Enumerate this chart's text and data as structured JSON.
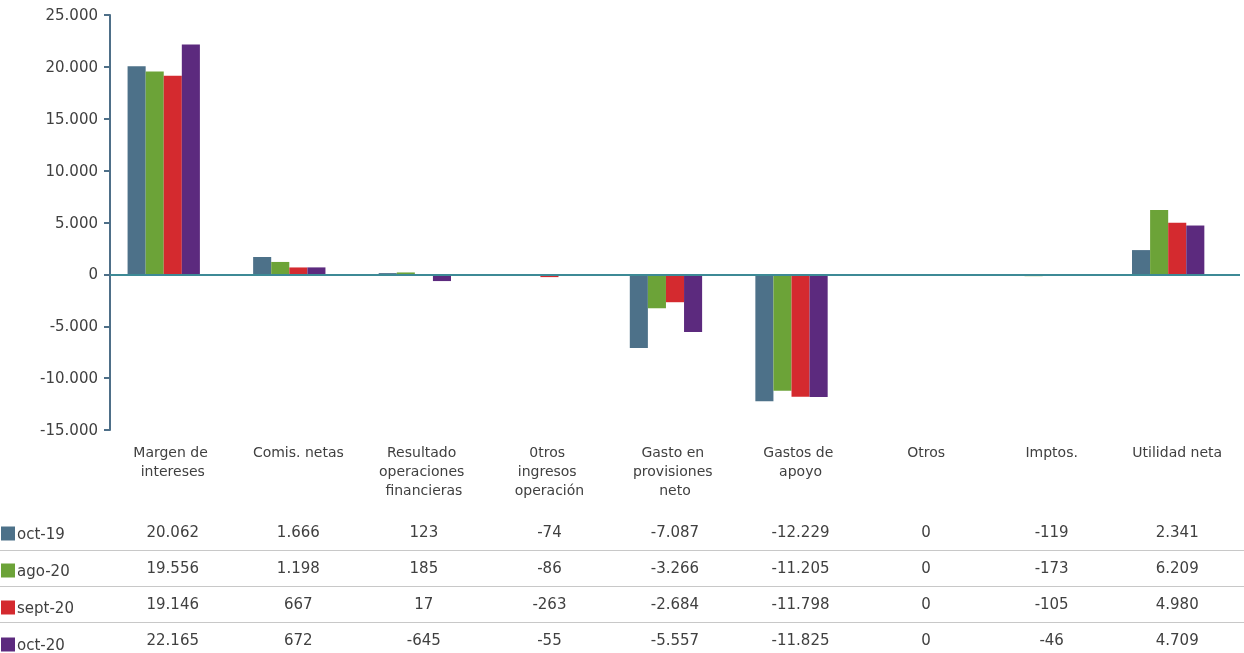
{
  "chart_data": {
    "type": "bar",
    "categories": [
      "Margen de intereses",
      "Comis. netas",
      "Resultado operaciones financieras",
      "0tros ingresos operación",
      "Gasto en provisiones neto",
      "Gastos de apoyo",
      "Otros",
      "Imptos.",
      "Utilidad neta"
    ],
    "series": [
      {
        "name": "oct-19",
        "color": "#4d7189",
        "values": [
          20062,
          1666,
          123,
          -74,
          -7087,
          -12229,
          0,
          -119,
          2341
        ],
        "value_labels": [
          "20.062",
          "1.666",
          "123",
          "-74",
          "-7.087",
          "-12.229",
          "0",
          "-119",
          "2.341"
        ]
      },
      {
        "name": "ago-20",
        "color": "#6ca338",
        "values": [
          19556,
          1198,
          185,
          -86,
          -3266,
          -11205,
          0,
          -173,
          6209
        ],
        "value_labels": [
          "19.556",
          "1.198",
          "185",
          "-86",
          "-3.266",
          "-11.205",
          "0",
          "-173",
          "6.209"
        ]
      },
      {
        "name": "sept-20",
        "color": "#d42a2f",
        "values": [
          19146,
          667,
          17,
          -263,
          -2684,
          -11798,
          0,
          -105,
          4980
        ],
        "value_labels": [
          "19.146",
          "667",
          "17",
          "-263",
          "-2.684",
          "-11.798",
          "0",
          "-105",
          "4.980"
        ]
      },
      {
        "name": "oct-20",
        "color": "#5c2a7e",
        "values": [
          22165,
          672,
          -645,
          -55,
          -5557,
          -11825,
          0,
          -46,
          4709
        ],
        "value_labels": [
          "22.165",
          "672",
          "-645",
          "-55",
          "-5.557",
          "-11.825",
          "0",
          "-46",
          "4.709"
        ]
      }
    ],
    "ylim": [
      -15000,
      25000
    ],
    "yticks": [
      {
        "value": -15000,
        "label": "-15.000"
      },
      {
        "value": -10000,
        "label": "-10.000"
      },
      {
        "value": -5000,
        "label": "-5.000"
      },
      {
        "value": 0,
        "label": "0"
      },
      {
        "value": 5000,
        "label": "5.000"
      },
      {
        "value": 10000,
        "label": "10.000"
      },
      {
        "value": 15000,
        "label": "15.000"
      },
      {
        "value": 20000,
        "label": "20.000"
      },
      {
        "value": 25000,
        "label": "25.000"
      }
    ],
    "ref_lines": [
      {
        "axis": "y",
        "value": 0,
        "color": "#3d8a96"
      }
    ],
    "grid": false,
    "legend": "bottom left"
  }
}
